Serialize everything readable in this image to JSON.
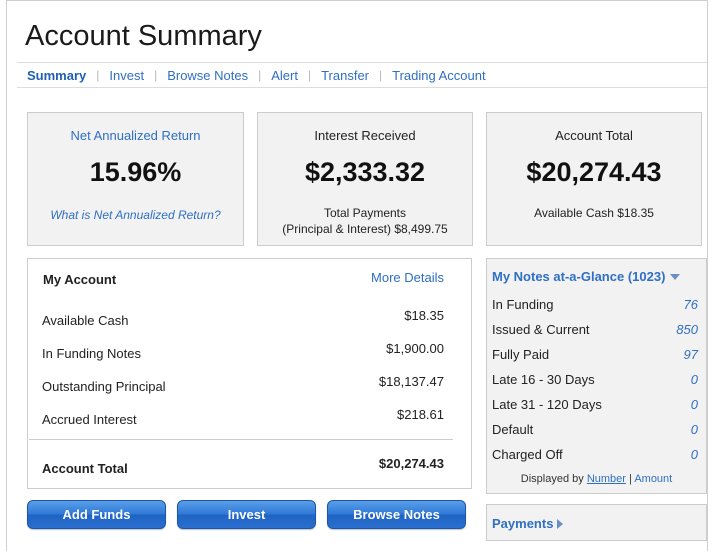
{
  "page": {
    "title": "Account Summary"
  },
  "nav": {
    "items": [
      {
        "label": "Summary",
        "active": true
      },
      {
        "label": "Invest"
      },
      {
        "label": "Browse Notes"
      },
      {
        "label": "Alert"
      },
      {
        "label": "Transfer"
      },
      {
        "label": "Trading Account"
      }
    ]
  },
  "stats": {
    "return": {
      "label": "Net Annualized Return",
      "value": "15.96%",
      "help_link": "What is Net Annualized Return?"
    },
    "interest": {
      "label": "Interest Received",
      "value": "$2,333.32",
      "sub_line1": "Total Payments",
      "sub_line2": "(Principal & Interest) $8,499.75"
    },
    "total": {
      "label": "Account Total",
      "value": "$20,274.43",
      "sub_line1": "Available Cash $18.35"
    }
  },
  "my_account": {
    "title": "My Account",
    "more_details": "More Details",
    "rows": [
      {
        "label": "Available Cash",
        "value": "$18.35"
      },
      {
        "label": "In Funding Notes",
        "value": "$1,900.00"
      },
      {
        "label": "Outstanding Principal",
        "value": "$18,137.47"
      },
      {
        "label": "Accrued Interest",
        "value": "$218.61"
      }
    ],
    "total_label": "Account Total",
    "total_value": "$20,274.43"
  },
  "buttons": {
    "add_funds": "Add Funds",
    "invest": "Invest",
    "browse_notes": "Browse Notes"
  },
  "glance": {
    "title": "My Notes at-a-Glance (1023)",
    "rows": [
      {
        "label": "In Funding",
        "value": "76"
      },
      {
        "label": "Issued & Current",
        "value": "850"
      },
      {
        "label": "Fully Paid",
        "value": "97"
      },
      {
        "label": "Late 16 - 30 Days",
        "value": "0"
      },
      {
        "label": "Late 31 - 120 Days",
        "value": "0"
      },
      {
        "label": "Default",
        "value": "0"
      },
      {
        "label": "Charged Off",
        "value": "0"
      }
    ],
    "displayed_by_prefix": "Displayed by",
    "displayed_by_number": "Number",
    "displayed_by_sep": "|",
    "displayed_by_amount": "Amount"
  },
  "payments": {
    "label": "Payments"
  },
  "colors": {
    "link": "#2f6fc4",
    "button": "#2f7ad8",
    "panel": "#f2f2f2"
  }
}
